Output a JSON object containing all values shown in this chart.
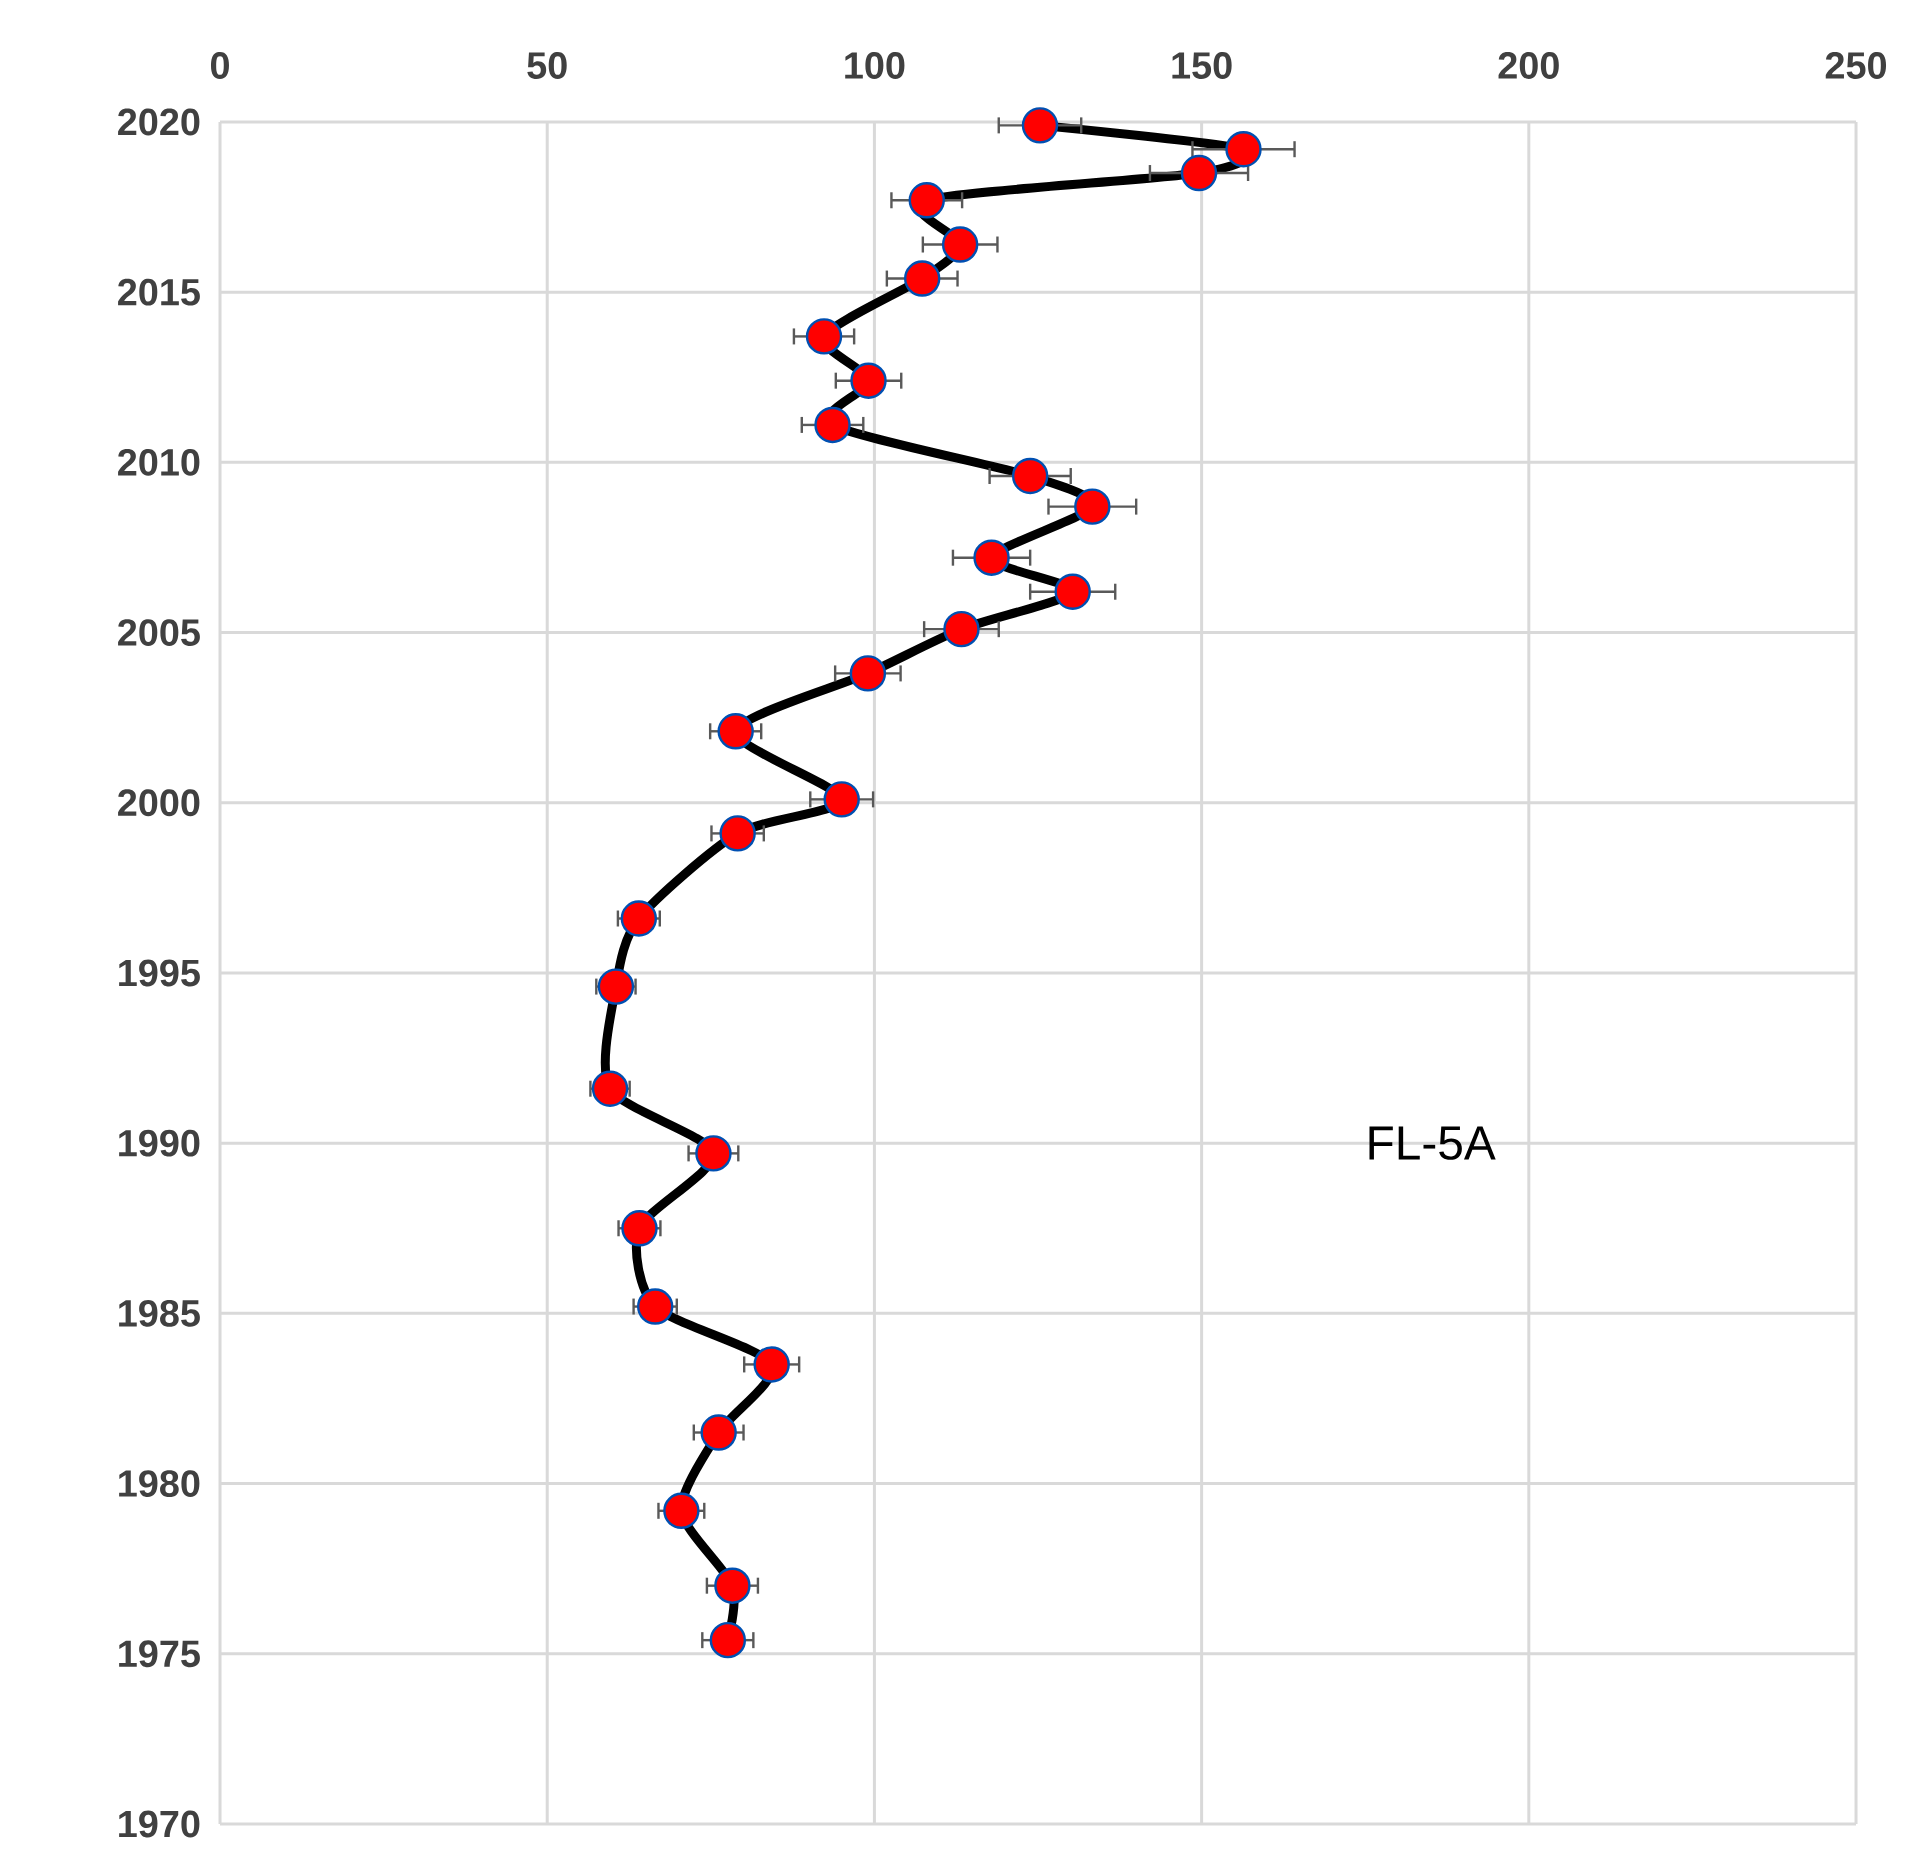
{
  "chart_data": {
    "type": "line",
    "orientation": "horizontal",
    "x": [
      2019.9,
      2019.2,
      2018.5,
      2017.7,
      2016.4,
      2015.4,
      2013.7,
      2012.4,
      2011.1,
      2009.6,
      2008.7,
      2007.2,
      2006.2,
      2005.1,
      2003.8,
      2002.1,
      2000.1,
      1999.1,
      1996.6,
      1994.6,
      1991.6,
      1989.7,
      1987.5,
      1985.2,
      1983.5,
      1981.5,
      1979.2,
      1977.0,
      1975.4
    ],
    "series": [
      {
        "color": "#ff0000",
        "values": [
          125.3,
          156.4,
          149.6,
          108.0,
          113.1,
          107.3,
          92.3,
          99.1,
          93.6,
          123.8,
          133.3,
          117.9,
          130.3,
          113.3,
          99.0,
          78.8,
          95.0,
          79.1,
          64.0,
          60.5,
          59.6,
          75.4,
          64.1,
          66.5,
          84.3,
          76.2,
          70.5,
          78.3,
          77.6
        ],
        "errors": [
          6.3,
          7.8,
          7.5,
          5.4,
          5.7,
          5.4,
          4.6,
          5.0,
          4.7,
          6.2,
          6.7,
          5.9,
          6.5,
          5.7,
          5.0,
          3.9,
          4.8,
          4.0,
          3.2,
          3.0,
          3.0,
          3.8,
          3.2,
          3.3,
          4.2,
          3.8,
          3.5,
          3.9,
          3.9
        ]
      }
    ],
    "xlim": [
      0,
      250
    ],
    "xticks": [
      0,
      50,
      100,
      150,
      200,
      250
    ],
    "ylim": [
      1970,
      2020
    ],
    "yticks": [
      1970,
      1975,
      1980,
      1985,
      1990,
      1995,
      2000,
      2005,
      2010,
      2015,
      2020
    ],
    "grid": true,
    "marker": "circle",
    "line_style": "solid",
    "annotations": [
      "FL-5A"
    ]
  }
}
